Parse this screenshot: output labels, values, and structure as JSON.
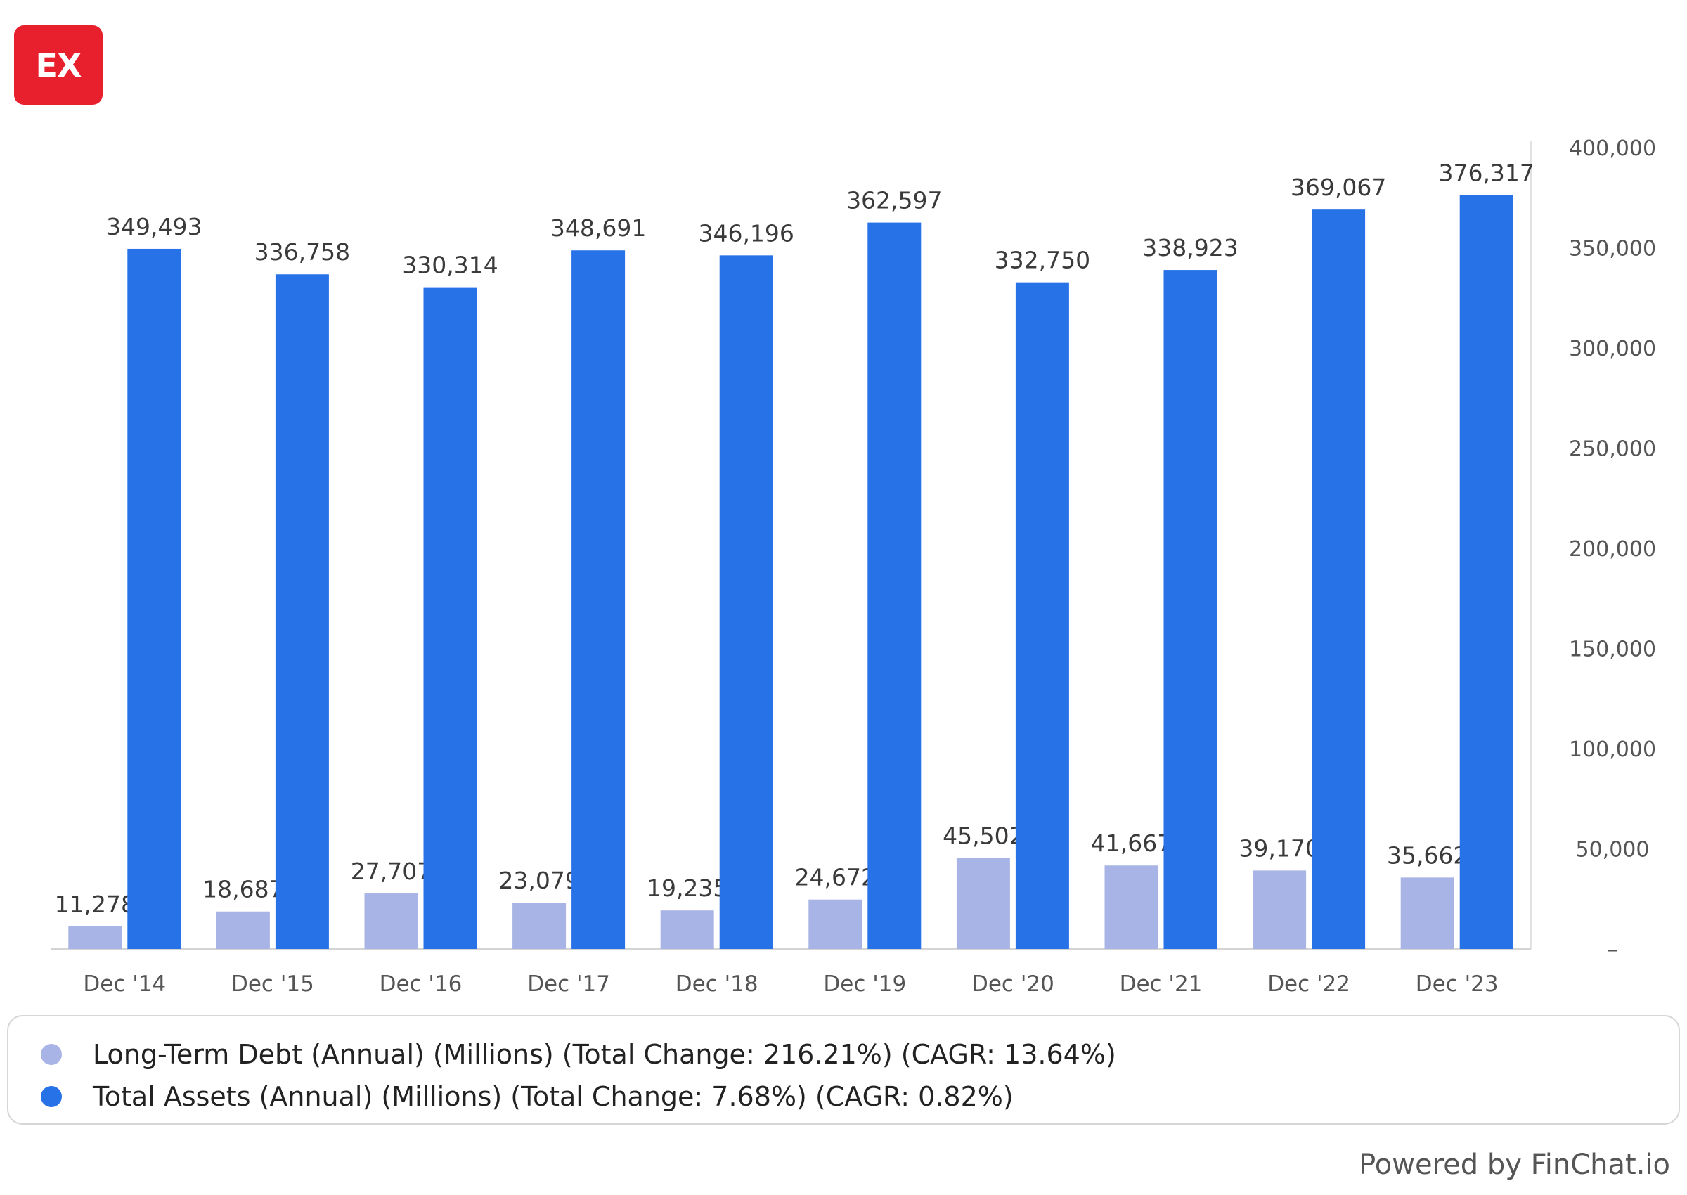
{
  "brand": {
    "logo_text": "EX",
    "logo_color": "#e8202e"
  },
  "chart_data": {
    "type": "bar",
    "categories": [
      "Dec '14",
      "Dec '15",
      "Dec '16",
      "Dec '17",
      "Dec '18",
      "Dec '19",
      "Dec '20",
      "Dec '21",
      "Dec '22",
      "Dec '23"
    ],
    "series": [
      {
        "name": "Long-Term Debt (Annual) (Millions) (Total Change: 216.21%) (CAGR: 13.64%)",
        "color": "#a9b4e6",
        "values": [
          11278,
          18687,
          27707,
          23079,
          19235,
          24672,
          45502,
          41667,
          39170,
          35662
        ],
        "labels": [
          "11,278",
          "18,687",
          "27,707",
          "23,079",
          "19,235",
          "24,672",
          "45,502",
          "41,667",
          "39,170",
          "35,662"
        ]
      },
      {
        "name": "Total Assets (Annual) (Millions) (Total Change: 7.68%) (CAGR: 0.82%)",
        "color": "#2872e8",
        "values": [
          349493,
          336758,
          330314,
          348691,
          346196,
          362597,
          332750,
          338923,
          369067,
          376317
        ],
        "labels": [
          "349,493",
          "336,758",
          "330,314",
          "348,691",
          "346,196",
          "362,597",
          "332,750",
          "338,923",
          "369,067",
          "376,317"
        ]
      }
    ],
    "y_axis": {
      "position": "right",
      "ylim": [
        0,
        400000
      ],
      "ticks": [
        0,
        50000,
        100000,
        150000,
        200000,
        250000,
        300000,
        350000,
        400000
      ],
      "tick_labels": [
        "–",
        "50,000",
        "100,000",
        "150,000",
        "200,000",
        "250,000",
        "300,000",
        "350,000",
        "400,000"
      ]
    },
    "grid": false,
    "legend_position": "bottom"
  },
  "footer": {
    "credit": "Powered by FinChat.io"
  }
}
